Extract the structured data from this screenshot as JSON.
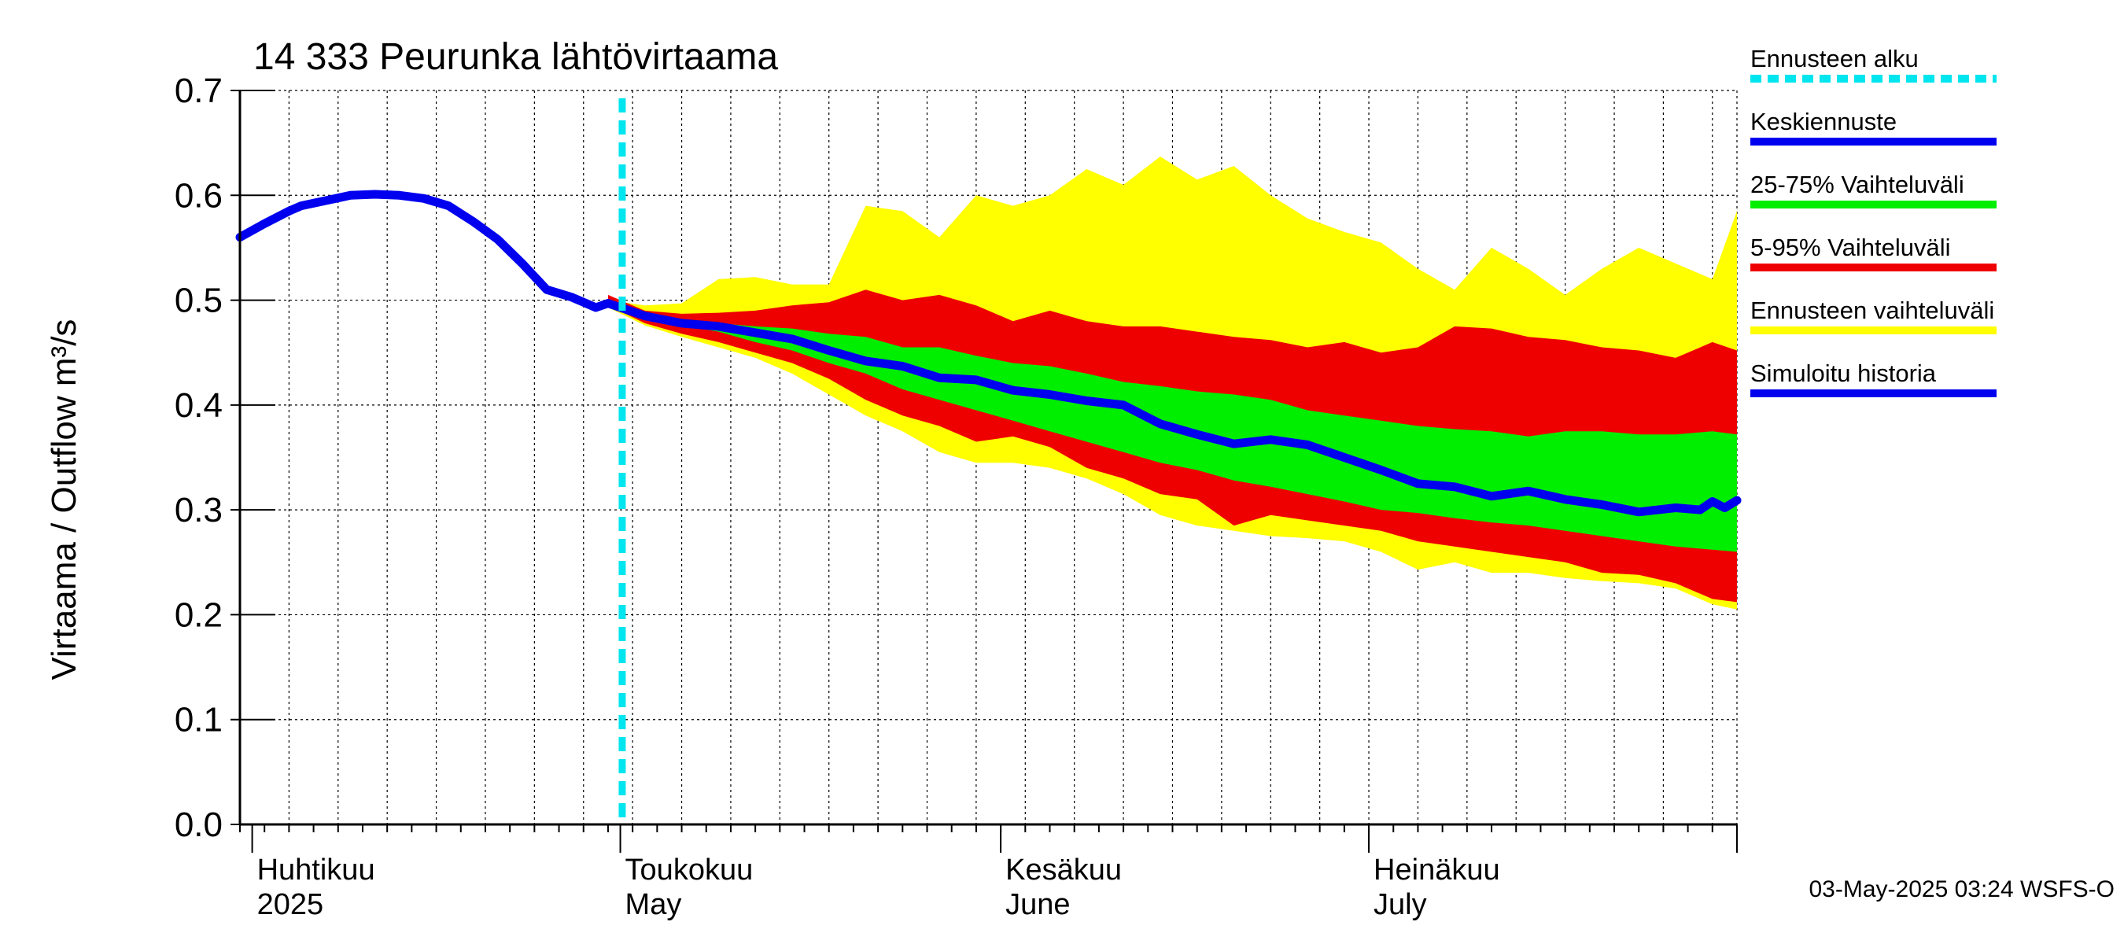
{
  "chart_data": {
    "type": "area",
    "title": "14 333 Peurunka lähtövirtaama",
    "ylabel": "Virtaama / Outflow    m³/s",
    "ylim": [
      0,
      0.7
    ],
    "yticks": [
      "0.0",
      "0.1",
      "0.2",
      "0.3",
      "0.4",
      "0.5",
      "0.6",
      "0.7"
    ],
    "ytick_values": [
      0,
      0.1,
      0.2,
      0.3,
      0.4,
      0.5,
      0.6,
      0.7
    ],
    "xlim": [
      "2025-03-31",
      "2025-07-31"
    ],
    "x_month_labels": [
      {
        "top": "Huhtikuu",
        "bottom": "2025",
        "date": "2025-04-01"
      },
      {
        "top": "Toukokuu",
        "bottom": "May",
        "date": "2025-05-01"
      },
      {
        "top": "Kesäkuu",
        "bottom": "June",
        "date": "2025-06-01"
      },
      {
        "top": "Heinäkuu",
        "bottom": "July",
        "date": "2025-07-01"
      }
    ],
    "grid": true,
    "forecast_start": "2025-04-30",
    "legend": [
      {
        "label": "Ennusteen alku",
        "color": "#00e5ee",
        "style": "dashed"
      },
      {
        "label": "Keskiennuste",
        "color": "#0000ee",
        "style": "solid"
      },
      {
        "label": "25-75% Vaihteluväli",
        "color": "#00ee00",
        "style": "solid"
      },
      {
        "label": "5-95% Vaihteluväli",
        "color": "#ee0000",
        "style": "solid"
      },
      {
        "label": "Ennusteen vaihteluväli",
        "color": "#ffff00",
        "style": "solid"
      },
      {
        "label": "Simuloitu historia",
        "color": "#0000ee",
        "style": "solid"
      }
    ],
    "footer": "03-May-2025 03:24 WSFS-O",
    "history": [
      {
        "x": "2025-03-31",
        "y": 0.56
      },
      {
        "x": "2025-04-02",
        "y": 0.573
      },
      {
        "x": "2025-04-04",
        "y": 0.585
      },
      {
        "x": "2025-04-05",
        "y": 0.59
      },
      {
        "x": "2025-04-07",
        "y": 0.595
      },
      {
        "x": "2025-04-09",
        "y": 0.6
      },
      {
        "x": "2025-04-11",
        "y": 0.601
      },
      {
        "x": "2025-04-13",
        "y": 0.6
      },
      {
        "x": "2025-04-15",
        "y": 0.597
      },
      {
        "x": "2025-04-17",
        "y": 0.59
      },
      {
        "x": "2025-04-19",
        "y": 0.575
      },
      {
        "x": "2025-04-21",
        "y": 0.558
      },
      {
        "x": "2025-04-23",
        "y": 0.535
      },
      {
        "x": "2025-04-25",
        "y": 0.51
      },
      {
        "x": "2025-04-27",
        "y": 0.503
      },
      {
        "x": "2025-04-29",
        "y": 0.493
      },
      {
        "x": "2025-04-30",
        "y": 0.497
      }
    ],
    "median": [
      {
        "x": "2025-04-30",
        "y": 0.497
      },
      {
        "x": "2025-05-03",
        "y": 0.485
      },
      {
        "x": "2025-05-06",
        "y": 0.478
      },
      {
        "x": "2025-05-09",
        "y": 0.475
      },
      {
        "x": "2025-05-12",
        "y": 0.469
      },
      {
        "x": "2025-05-15",
        "y": 0.463
      },
      {
        "x": "2025-05-18",
        "y": 0.452
      },
      {
        "x": "2025-05-21",
        "y": 0.442
      },
      {
        "x": "2025-05-24",
        "y": 0.437
      },
      {
        "x": "2025-05-27",
        "y": 0.426
      },
      {
        "x": "2025-05-30",
        "y": 0.424
      },
      {
        "x": "2025-06-02",
        "y": 0.414
      },
      {
        "x": "2025-06-05",
        "y": 0.41
      },
      {
        "x": "2025-06-08",
        "y": 0.404
      },
      {
        "x": "2025-06-11",
        "y": 0.4
      },
      {
        "x": "2025-06-14",
        "y": 0.382
      },
      {
        "x": "2025-06-17",
        "y": 0.372
      },
      {
        "x": "2025-06-20",
        "y": 0.363
      },
      {
        "x": "2025-06-23",
        "y": 0.367
      },
      {
        "x": "2025-06-26",
        "y": 0.362
      },
      {
        "x": "2025-06-29",
        "y": 0.35
      },
      {
        "x": "2025-07-02",
        "y": 0.338
      },
      {
        "x": "2025-07-05",
        "y": 0.325
      },
      {
        "x": "2025-07-08",
        "y": 0.322
      },
      {
        "x": "2025-07-11",
        "y": 0.313
      },
      {
        "x": "2025-07-14",
        "y": 0.318
      },
      {
        "x": "2025-07-17",
        "y": 0.31
      },
      {
        "x": "2025-07-20",
        "y": 0.305
      },
      {
        "x": "2025-07-23",
        "y": 0.298
      },
      {
        "x": "2025-07-26",
        "y": 0.302
      },
      {
        "x": "2025-07-28",
        "y": 0.3
      },
      {
        "x": "2025-07-29",
        "y": 0.308
      },
      {
        "x": "2025-07-30",
        "y": 0.302
      },
      {
        "x": "2025-07-31",
        "y": 0.309
      }
    ],
    "band_dates": [
      "2025-04-30",
      "2025-05-03",
      "2025-05-06",
      "2025-05-09",
      "2025-05-12",
      "2025-05-15",
      "2025-05-18",
      "2025-05-21",
      "2025-05-24",
      "2025-05-27",
      "2025-05-30",
      "2025-06-02",
      "2025-06-05",
      "2025-06-08",
      "2025-06-11",
      "2025-06-14",
      "2025-06-17",
      "2025-06-20",
      "2025-06-23",
      "2025-06-26",
      "2025-06-29",
      "2025-07-02",
      "2025-07-05",
      "2025-07-08",
      "2025-07-11",
      "2025-07-14",
      "2025-07-17",
      "2025-07-20",
      "2025-07-23",
      "2025-07-26",
      "2025-07-29",
      "2025-07-31"
    ],
    "range_upper": [
      0.5,
      0.495,
      0.497,
      0.52,
      0.522,
      0.515,
      0.515,
      0.59,
      0.585,
      0.56,
      0.6,
      0.59,
      0.6,
      0.625,
      0.61,
      0.637,
      0.615,
      0.628,
      0.6,
      0.578,
      0.565,
      0.555,
      0.53,
      0.51,
      0.55,
      0.53,
      0.505,
      0.53,
      0.55,
      0.535,
      0.52,
      0.585
    ],
    "p95": [
      0.505,
      0.49,
      0.487,
      0.488,
      0.49,
      0.495,
      0.498,
      0.51,
      0.5,
      0.505,
      0.495,
      0.48,
      0.49,
      0.48,
      0.475,
      0.475,
      0.47,
      0.465,
      0.462,
      0.455,
      0.46,
      0.45,
      0.455,
      0.475,
      0.473,
      0.465,
      0.462,
      0.455,
      0.452,
      0.445,
      0.46,
      0.452
    ],
    "p75": [
      0.5,
      0.488,
      0.482,
      0.478,
      0.475,
      0.473,
      0.468,
      0.465,
      0.455,
      0.455,
      0.447,
      0.44,
      0.437,
      0.43,
      0.422,
      0.418,
      0.413,
      0.41,
      0.405,
      0.395,
      0.39,
      0.385,
      0.38,
      0.377,
      0.375,
      0.37,
      0.375,
      0.375,
      0.372,
      0.372,
      0.375,
      0.372
    ],
    "p25": [
      0.497,
      0.483,
      0.476,
      0.47,
      0.46,
      0.452,
      0.44,
      0.43,
      0.415,
      0.405,
      0.395,
      0.385,
      0.375,
      0.365,
      0.355,
      0.345,
      0.338,
      0.328,
      0.322,
      0.315,
      0.308,
      0.3,
      0.297,
      0.292,
      0.288,
      0.285,
      0.28,
      0.275,
      0.27,
      0.265,
      0.262,
      0.26
    ],
    "p5": [
      0.495,
      0.478,
      0.468,
      0.46,
      0.45,
      0.44,
      0.425,
      0.405,
      0.39,
      0.38,
      0.365,
      0.37,
      0.36,
      0.34,
      0.33,
      0.315,
      0.31,
      0.285,
      0.295,
      0.29,
      0.285,
      0.28,
      0.27,
      0.265,
      0.26,
      0.255,
      0.25,
      0.24,
      0.238,
      0.23,
      0.215,
      0.212
    ],
    "range_lower": [
      0.493,
      0.476,
      0.465,
      0.455,
      0.445,
      0.43,
      0.41,
      0.39,
      0.375,
      0.355,
      0.345,
      0.345,
      0.34,
      0.33,
      0.315,
      0.295,
      0.285,
      0.28,
      0.275,
      0.273,
      0.27,
      0.26,
      0.243,
      0.25,
      0.24,
      0.24,
      0.235,
      0.232,
      0.23,
      0.225,
      0.21,
      0.205
    ]
  }
}
